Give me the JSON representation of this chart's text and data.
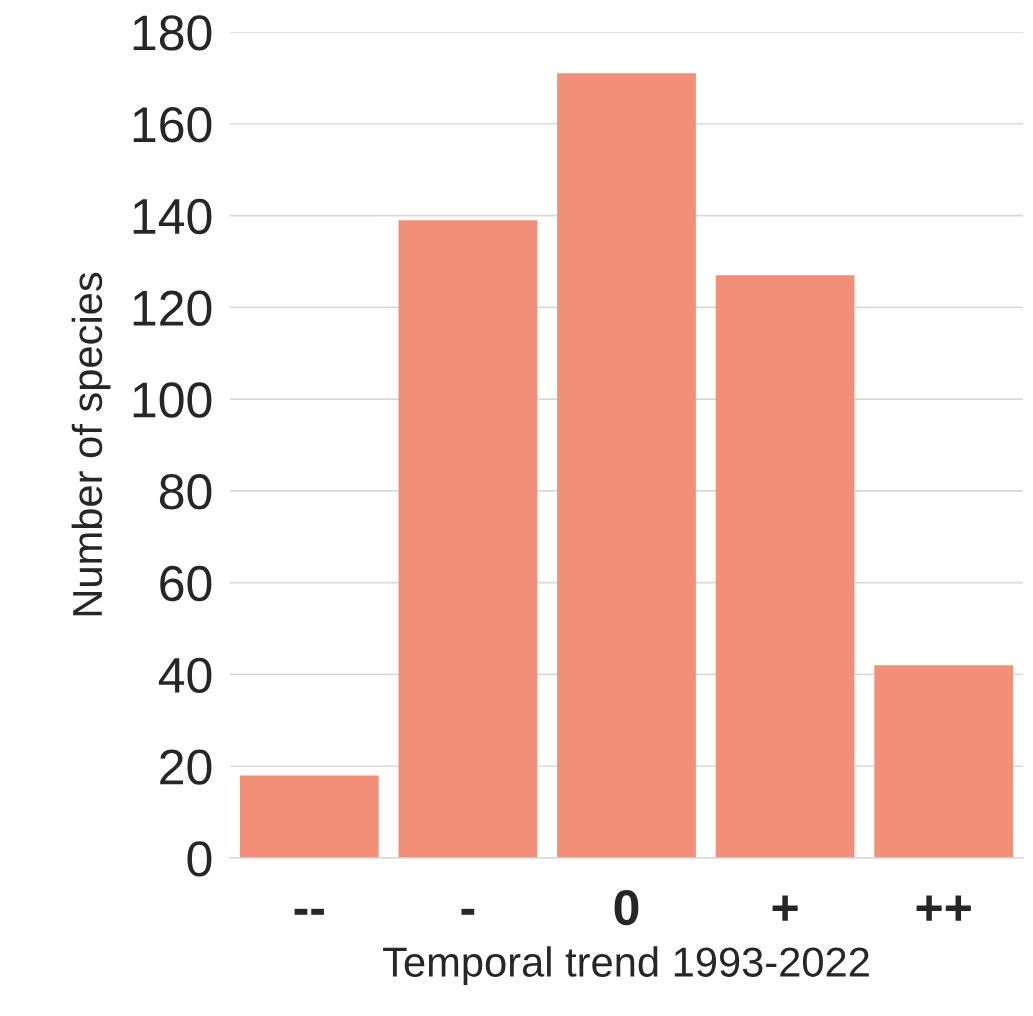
{
  "chart_data": {
    "type": "bar",
    "xlabel": "Temporal trend 1993-2022",
    "ylabel": "Number of species",
    "categories": [
      "--",
      "-",
      "0",
      "+",
      "++"
    ],
    "values": [
      18,
      139,
      171,
      127,
      42
    ],
    "color": "#f28f79",
    "ylim": [
      0,
      180
    ],
    "yticks": [
      0,
      20,
      40,
      60,
      80,
      100,
      120,
      140,
      160,
      180
    ],
    "grid": "y"
  }
}
